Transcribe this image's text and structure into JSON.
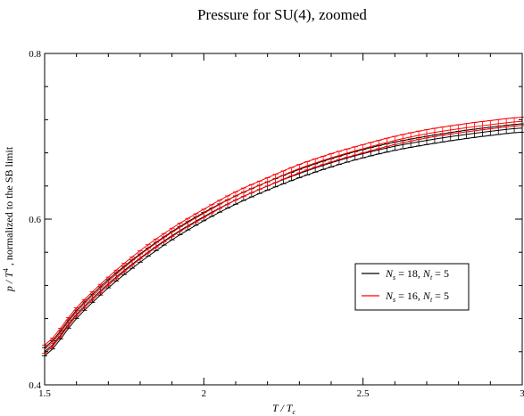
{
  "chart_data": {
    "type": "line",
    "title": "Pressure for SU(4), zoomed",
    "xlabel": {
      "base": "T / T",
      "sub": "c"
    },
    "ylabel": {
      "pre": "p / T",
      "sup": "4",
      "post": " , normalized to the SB limit"
    },
    "xlim": [
      1.5,
      3.0
    ],
    "ylim": [
      0.4,
      0.8
    ],
    "xticks": [
      "1.5",
      "2",
      "2.5",
      "3"
    ],
    "yticks": [
      "0.4",
      "0.6",
      "0.8"
    ],
    "grid": false,
    "legend_placement": "right-middle",
    "series": [
      {
        "name": "N_s = 18, N_t = 5",
        "label": {
          "n1": "N",
          "s1": "s",
          "mid": " = 18, ",
          "n2": "N",
          "s2": "t",
          "end": " = 5"
        },
        "color": "#000000",
        "x": [
          1.5,
          1.6,
          1.7,
          1.8,
          1.9,
          2.0,
          2.1,
          2.2,
          2.3,
          2.4,
          2.5,
          2.6,
          2.7,
          2.8,
          2.9,
          3.0
        ],
        "y": [
          0.44,
          0.485,
          0.522,
          0.553,
          0.58,
          0.603,
          0.623,
          0.64,
          0.655,
          0.668,
          0.679,
          0.688,
          0.695,
          0.701,
          0.706,
          0.71
        ],
        "err": 0.005
      },
      {
        "name": "N_s = 16, N_t = 5",
        "label": {
          "n1": "N",
          "s1": "s",
          "mid": " = 16, ",
          "n2": "N",
          "s2": "t",
          "end": " = 5"
        },
        "color": "#ff0000",
        "x": [
          1.5,
          1.6,
          1.7,
          1.8,
          1.9,
          2.0,
          2.1,
          2.2,
          2.3,
          2.4,
          2.5,
          2.6,
          2.7,
          2.8,
          2.9,
          3.0
        ],
        "y": [
          0.443,
          0.488,
          0.525,
          0.557,
          0.584,
          0.607,
          0.628,
          0.645,
          0.661,
          0.674,
          0.685,
          0.695,
          0.703,
          0.709,
          0.714,
          0.718
        ],
        "err": 0.005
      }
    ]
  }
}
